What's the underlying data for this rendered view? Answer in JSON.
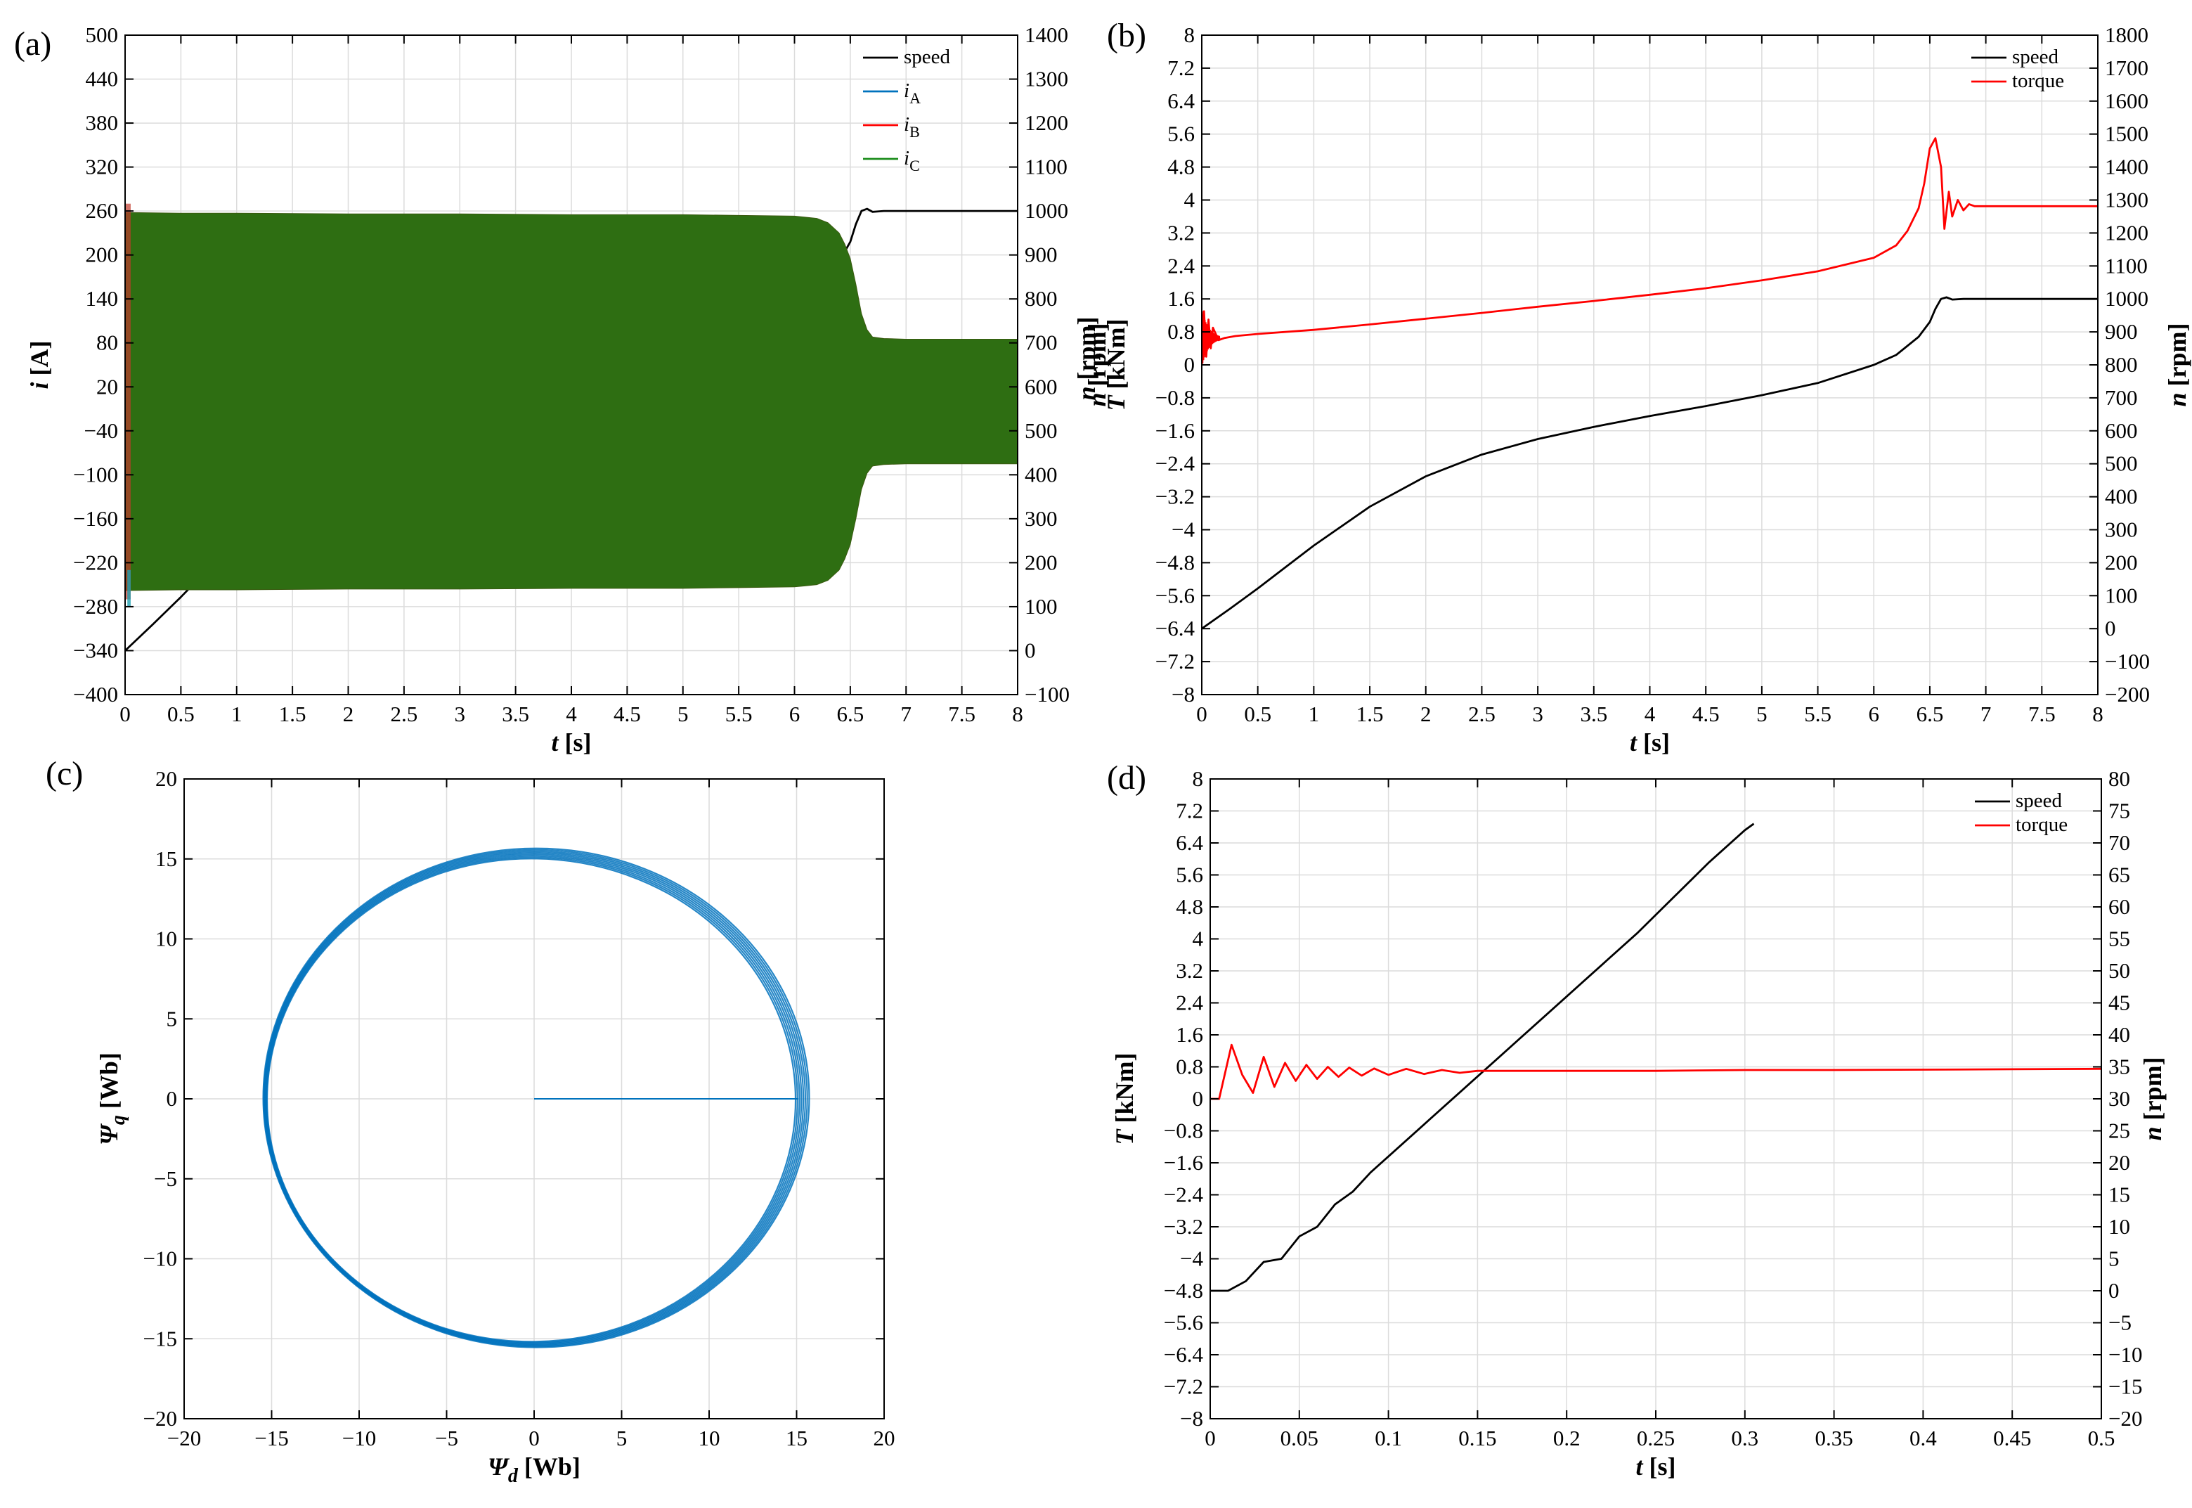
{
  "chart_data": [
    {
      "id": "a",
      "panel_label": "(a)",
      "type": "line",
      "xlabel": "t [s]",
      "ylabel": "i [A]",
      "y2label": "n [rpm]",
      "xlim": [
        0,
        8
      ],
      "ylim": [
        -400,
        500
      ],
      "y2lim": [
        -100,
        1400
      ],
      "xticks": [
        0,
        0.5,
        1,
        1.5,
        2,
        2.5,
        3,
        3.5,
        4,
        4.5,
        5,
        5.5,
        6,
        6.5,
        7,
        7.5,
        8
      ],
      "yticks": [
        -400,
        -340,
        -280,
        -220,
        -160,
        -100,
        -40,
        20,
        80,
        140,
        200,
        260,
        320,
        380,
        440,
        500
      ],
      "y2ticks": [
        -100,
        0,
        100,
        200,
        300,
        400,
        500,
        600,
        700,
        800,
        900,
        1000,
        1100,
        1200,
        1300,
        1400
      ],
      "grid": true,
      "legend_position": "top-right",
      "legend": [
        {
          "name": "speed",
          "color": "#000000"
        },
        {
          "name": "i",
          "sub": "A",
          "color": "#0072bd"
        },
        {
          "name": "i",
          "sub": "B",
          "color": "#ff0000"
        },
        {
          "name": "i",
          "sub": "C",
          "color": "#1a8c1a"
        }
      ],
      "series": [
        {
          "name": "speed",
          "axis": "right",
          "color": "#000000",
          "x": [
            0,
            0.25,
            0.5,
            0.75,
            1,
            1.5,
            2,
            2.5,
            3,
            3.5,
            4,
            4.5,
            5,
            5.5,
            6,
            6.2,
            6.4,
            6.5,
            6.55,
            6.6,
            6.65,
            6.7,
            6.8,
            7,
            8
          ],
          "y": [
            0,
            60,
            122,
            187,
            252,
            370,
            462,
            528,
            575,
            612,
            645,
            675,
            708,
            745,
            800,
            830,
            885,
            930,
            970,
            1000,
            1005,
            998,
            1000,
            1000,
            1000
          ]
        },
        {
          "name": "currents_envelope",
          "axis": "left",
          "color": "#2e6e12",
          "x": [
            0,
            0.5,
            1,
            2,
            3,
            4,
            5,
            5.5,
            6,
            6.2,
            6.3,
            6.4,
            6.45,
            6.5,
            6.55,
            6.6,
            6.65,
            6.7,
            6.8,
            7,
            8
          ],
          "upper": [
            258,
            257,
            257,
            256,
            256,
            255,
            255,
            254,
            253,
            250,
            244,
            230,
            215,
            195,
            160,
            120,
            98,
            88,
            86,
            85,
            85
          ],
          "lower": [
            -258,
            -257,
            -257,
            -256,
            -256,
            -255,
            -255,
            -254,
            -253,
            -250,
            -244,
            -230,
            -215,
            -195,
            -160,
            -120,
            -98,
            -88,
            -86,
            -85,
            -85
          ]
        }
      ]
    },
    {
      "id": "b",
      "panel_label": "(b)",
      "type": "line",
      "xlabel": "t [s]",
      "ylabel": "T [kNm]",
      "ylabel_upper": "n [rpm]",
      "y2label": "n [rpm]",
      "xlim": [
        0,
        8
      ],
      "ylim": [
        -8,
        8
      ],
      "y2lim": [
        -200,
        1800
      ],
      "xticks": [
        0,
        0.5,
        1,
        1.5,
        2,
        2.5,
        3,
        3.5,
        4,
        4.5,
        5,
        5.5,
        6,
        6.5,
        7,
        7.5,
        8
      ],
      "yticks": [
        -8,
        -7.2,
        -6.4,
        -5.6,
        -4.8,
        -4,
        -3.2,
        -2.4,
        -1.6,
        -0.8,
        0,
        0.8,
        1.6,
        2.4,
        3.2,
        4,
        4.8,
        5.6,
        6.4,
        7.2,
        8
      ],
      "y2ticks": [
        -200,
        -100,
        0,
        100,
        200,
        300,
        400,
        500,
        600,
        700,
        800,
        900,
        1000,
        1100,
        1200,
        1300,
        1400,
        1500,
        1600,
        1700,
        1800
      ],
      "grid": true,
      "legend_position": "top-right",
      "legend": [
        {
          "name": "speed",
          "color": "#000000"
        },
        {
          "name": "torque",
          "color": "#ff0000"
        }
      ],
      "series": [
        {
          "name": "speed",
          "axis": "right",
          "color": "#000000",
          "x": [
            0,
            0.25,
            0.5,
            0.75,
            1,
            1.5,
            2,
            2.5,
            3,
            3.5,
            4,
            4.5,
            5,
            5.5,
            6,
            6.2,
            6.4,
            6.5,
            6.55,
            6.6,
            6.65,
            6.7,
            6.8,
            7,
            8
          ],
          "y": [
            0,
            60,
            122,
            187,
            252,
            370,
            462,
            528,
            575,
            612,
            645,
            675,
            708,
            745,
            800,
            830,
            885,
            930,
            970,
            1000,
            1005,
            998,
            1000,
            1000,
            1000
          ]
        },
        {
          "name": "torque",
          "axis": "left",
          "color": "#ff0000",
          "x": [
            0,
            0.02,
            0.04,
            0.06,
            0.08,
            0.1,
            0.15,
            0.2,
            0.3,
            0.5,
            1,
            1.5,
            2,
            2.5,
            3,
            3.5,
            4,
            4.5,
            5,
            5.5,
            6,
            6.2,
            6.3,
            6.4,
            6.45,
            6.5,
            6.55,
            6.6,
            6.63,
            6.67,
            6.7,
            6.75,
            6.8,
            6.85,
            6.9,
            7,
            8
          ],
          "y": [
            0,
            1.3,
            0.2,
            1.1,
            0.4,
            0.9,
            0.6,
            0.65,
            0.7,
            0.75,
            0.85,
            0.98,
            1.12,
            1.26,
            1.41,
            1.55,
            1.7,
            1.86,
            2.05,
            2.27,
            2.6,
            2.9,
            3.25,
            3.8,
            4.4,
            5.25,
            5.5,
            4.8,
            3.3,
            4.2,
            3.6,
            4.0,
            3.75,
            3.9,
            3.85,
            3.85,
            3.85
          ]
        }
      ]
    },
    {
      "id": "c",
      "panel_label": "(c)",
      "type": "line",
      "xlabel": "Ψd [Wb]",
      "ylabel": "Ψq [Wb]",
      "xlim": [
        -20,
        20
      ],
      "ylim": [
        -20,
        20
      ],
      "xticks": [
        -20,
        -15,
        -10,
        -5,
        0,
        5,
        10,
        15,
        20
      ],
      "yticks": [
        -20,
        -15,
        -10,
        -5,
        0,
        5,
        10,
        15,
        20
      ],
      "grid": true,
      "series": [
        {
          "name": "flux_trajectory",
          "color": "#0072bd",
          "shape": "near-circle",
          "radius_min": 15.1,
          "radius_max": 15.6,
          "start_segment": {
            "x": [
              0,
              15.1
            ],
            "y": [
              0,
              0
            ]
          }
        }
      ]
    },
    {
      "id": "d",
      "panel_label": "(d)",
      "type": "line",
      "xlabel": "t [s]",
      "ylabel": "T [kNm]",
      "y2label": "n [rpm]",
      "xlim": [
        0,
        0.5
      ],
      "ylim": [
        -8,
        8
      ],
      "y2lim": [
        -20,
        80
      ],
      "xticks": [
        0,
        0.05,
        0.1,
        0.15,
        0.2,
        0.25,
        0.3,
        0.35,
        0.4,
        0.45,
        0.5
      ],
      "yticks": [
        -8,
        -7.2,
        -6.4,
        -5.6,
        -4.8,
        -4,
        -3.2,
        -2.4,
        -1.6,
        -0.8,
        0,
        0.8,
        1.6,
        2.4,
        3.2,
        4,
        4.8,
        5.6,
        6.4,
        7.2,
        8
      ],
      "y2ticks": [
        -20,
        -15,
        -10,
        -5,
        0,
        5,
        10,
        15,
        20,
        25,
        30,
        35,
        40,
        45,
        50,
        55,
        60,
        65,
        70,
        75,
        80
      ],
      "grid": true,
      "legend_position": "top-right",
      "legend": [
        {
          "name": "speed",
          "color": "#000000"
        },
        {
          "name": "torque",
          "color": "#ff0000"
        }
      ],
      "series": [
        {
          "name": "speed",
          "axis": "right",
          "color": "#000000",
          "x": [
            0,
            0.01,
            0.02,
            0.03,
            0.04,
            0.05,
            0.06,
            0.07,
            0.08,
            0.09,
            0.1,
            0.12,
            0.14,
            0.16,
            0.18,
            0.2,
            0.22,
            0.24,
            0.26,
            0.28,
            0.3,
            0.305
          ],
          "y": [
            0,
            0,
            1.5,
            4.5,
            5,
            8.5,
            10,
            13.5,
            15.5,
            18.5,
            21,
            26,
            31,
            36,
            41,
            46,
            51,
            56,
            61.5,
            67,
            72,
            73
          ]
        },
        {
          "name": "torque",
          "axis": "left",
          "color": "#ff0000",
          "x": [
            0,
            0.005,
            0.012,
            0.018,
            0.024,
            0.03,
            0.036,
            0.042,
            0.048,
            0.054,
            0.06,
            0.066,
            0.072,
            0.078,
            0.085,
            0.092,
            0.1,
            0.11,
            0.12,
            0.13,
            0.14,
            0.15,
            0.2,
            0.25,
            0.3,
            0.35,
            0.4,
            0.45,
            0.5
          ],
          "y": [
            0,
            0,
            1.35,
            0.6,
            0.15,
            1.05,
            0.3,
            0.9,
            0.45,
            0.85,
            0.5,
            0.8,
            0.55,
            0.78,
            0.58,
            0.76,
            0.6,
            0.75,
            0.62,
            0.72,
            0.65,
            0.7,
            0.7,
            0.7,
            0.72,
            0.72,
            0.73,
            0.74,
            0.75
          ]
        }
      ]
    }
  ]
}
